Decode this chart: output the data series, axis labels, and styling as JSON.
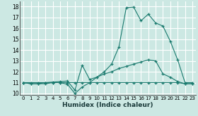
{
  "xlabel": "Humidex (Indice chaleur)",
  "bg_color": "#cce8e3",
  "grid_color": "#ffffff",
  "line_color": "#1a7a6e",
  "xlim": [
    -0.5,
    23.5
  ],
  "ylim": [
    9.85,
    18.5
  ],
  "yticks": [
    10,
    11,
    12,
    13,
    14,
    15,
    16,
    17,
    18
  ],
  "xticks": [
    0,
    1,
    2,
    3,
    4,
    5,
    6,
    7,
    8,
    9,
    10,
    11,
    12,
    13,
    14,
    15,
    16,
    17,
    18,
    19,
    20,
    21,
    22,
    23
  ],
  "line1_x": [
    0,
    1,
    2,
    3,
    4,
    5,
    6,
    7,
    8,
    9,
    10,
    11,
    12,
    13,
    14,
    15,
    16,
    17,
    18,
    19,
    20,
    21,
    22,
    23
  ],
  "line1_y": [
    11.0,
    10.9,
    10.9,
    10.9,
    11.0,
    11.0,
    10.85,
    10.0,
    10.6,
    11.0,
    11.0,
    11.0,
    11.0,
    11.0,
    11.0,
    11.0,
    11.0,
    11.0,
    11.0,
    11.0,
    11.0,
    11.0,
    10.9,
    10.9
  ],
  "line2_x": [
    0,
    1,
    2,
    3,
    4,
    5,
    6,
    7,
    8,
    9,
    10,
    11,
    12,
    13,
    14,
    15,
    16,
    17,
    18,
    19,
    20,
    21,
    22,
    23
  ],
  "line2_y": [
    11.0,
    10.9,
    10.9,
    11.0,
    11.05,
    11.1,
    11.15,
    10.3,
    12.6,
    11.3,
    11.5,
    11.8,
    12.0,
    12.3,
    12.5,
    12.7,
    12.9,
    13.1,
    13.0,
    11.8,
    11.5,
    11.1,
    10.9,
    10.9
  ],
  "line3_x": [
    0,
    1,
    2,
    3,
    4,
    5,
    6,
    7,
    8,
    9,
    10,
    11,
    12,
    13,
    14,
    15,
    16,
    17,
    18,
    19,
    20,
    21,
    22,
    23
  ],
  "line3_y": [
    11.0,
    11.0,
    11.0,
    11.0,
    11.0,
    11.0,
    11.0,
    11.0,
    11.0,
    11.0,
    11.5,
    12.0,
    12.7,
    14.3,
    17.9,
    17.95,
    16.7,
    17.3,
    16.5,
    16.2,
    14.8,
    13.1,
    11.0,
    11.0
  ]
}
